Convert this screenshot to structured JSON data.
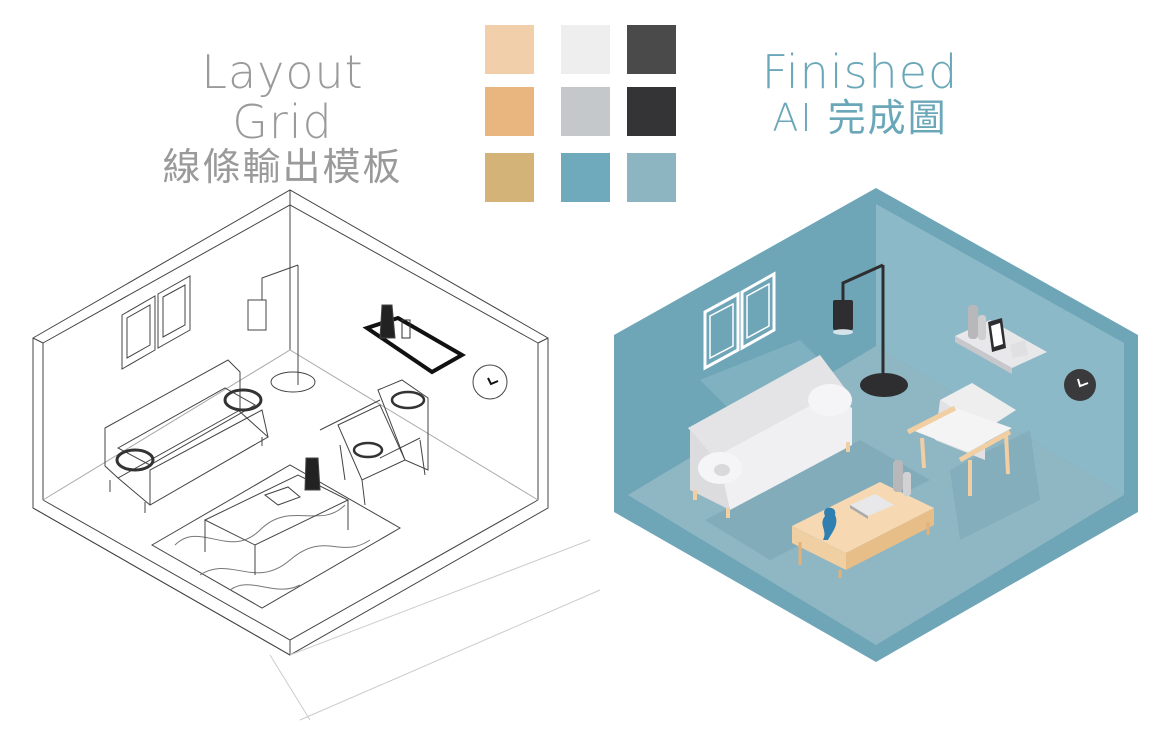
{
  "left_panel": {
    "title_en": "Layout Grid",
    "title_zh": "線條輸出模板"
  },
  "right_panel": {
    "title_en": "Finished",
    "title_zh": "AI 完成圖"
  },
  "palette": [
    "#f0cfaa",
    "#eeeeef",
    "#4a4a4b",
    "#e8b67e",
    "#c5c8cb",
    "#343335",
    "#d3b378",
    "#6fa9bc",
    "#8db4c1"
  ],
  "colors": {
    "line_art": "#444444",
    "room_wall": "#6ea6b8",
    "room_floor": "#8fb6c3",
    "sofa": "#ececec",
    "wood": "#f2cfa3",
    "lamp": "#2e2e30"
  }
}
